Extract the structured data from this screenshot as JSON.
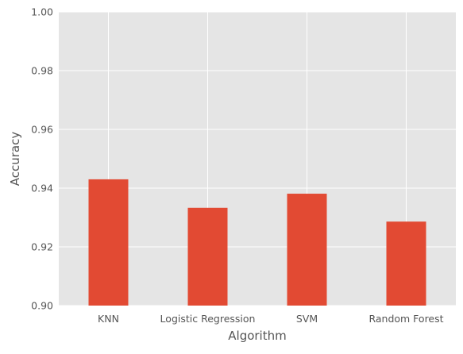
{
  "chart_data": {
    "type": "bar",
    "title": "",
    "xlabel": "Algorithm",
    "ylabel": "Accuracy",
    "categories": [
      "KNN",
      "Logistic Regression",
      "SVM",
      "Random Forest"
    ],
    "values": [
      0.943,
      0.9333,
      0.9381,
      0.9286
    ],
    "ylim": [
      0.9,
      1.0
    ],
    "yticks": [
      "0.90",
      "0.92",
      "0.94",
      "0.96",
      "0.98",
      "1.00"
    ],
    "grid": true,
    "style": "ggplot",
    "colors": {
      "bar": "#E24A33",
      "plot_background": "#E5E5E5",
      "grid": "#FFFFFF",
      "tick_text": "#555555"
    }
  }
}
